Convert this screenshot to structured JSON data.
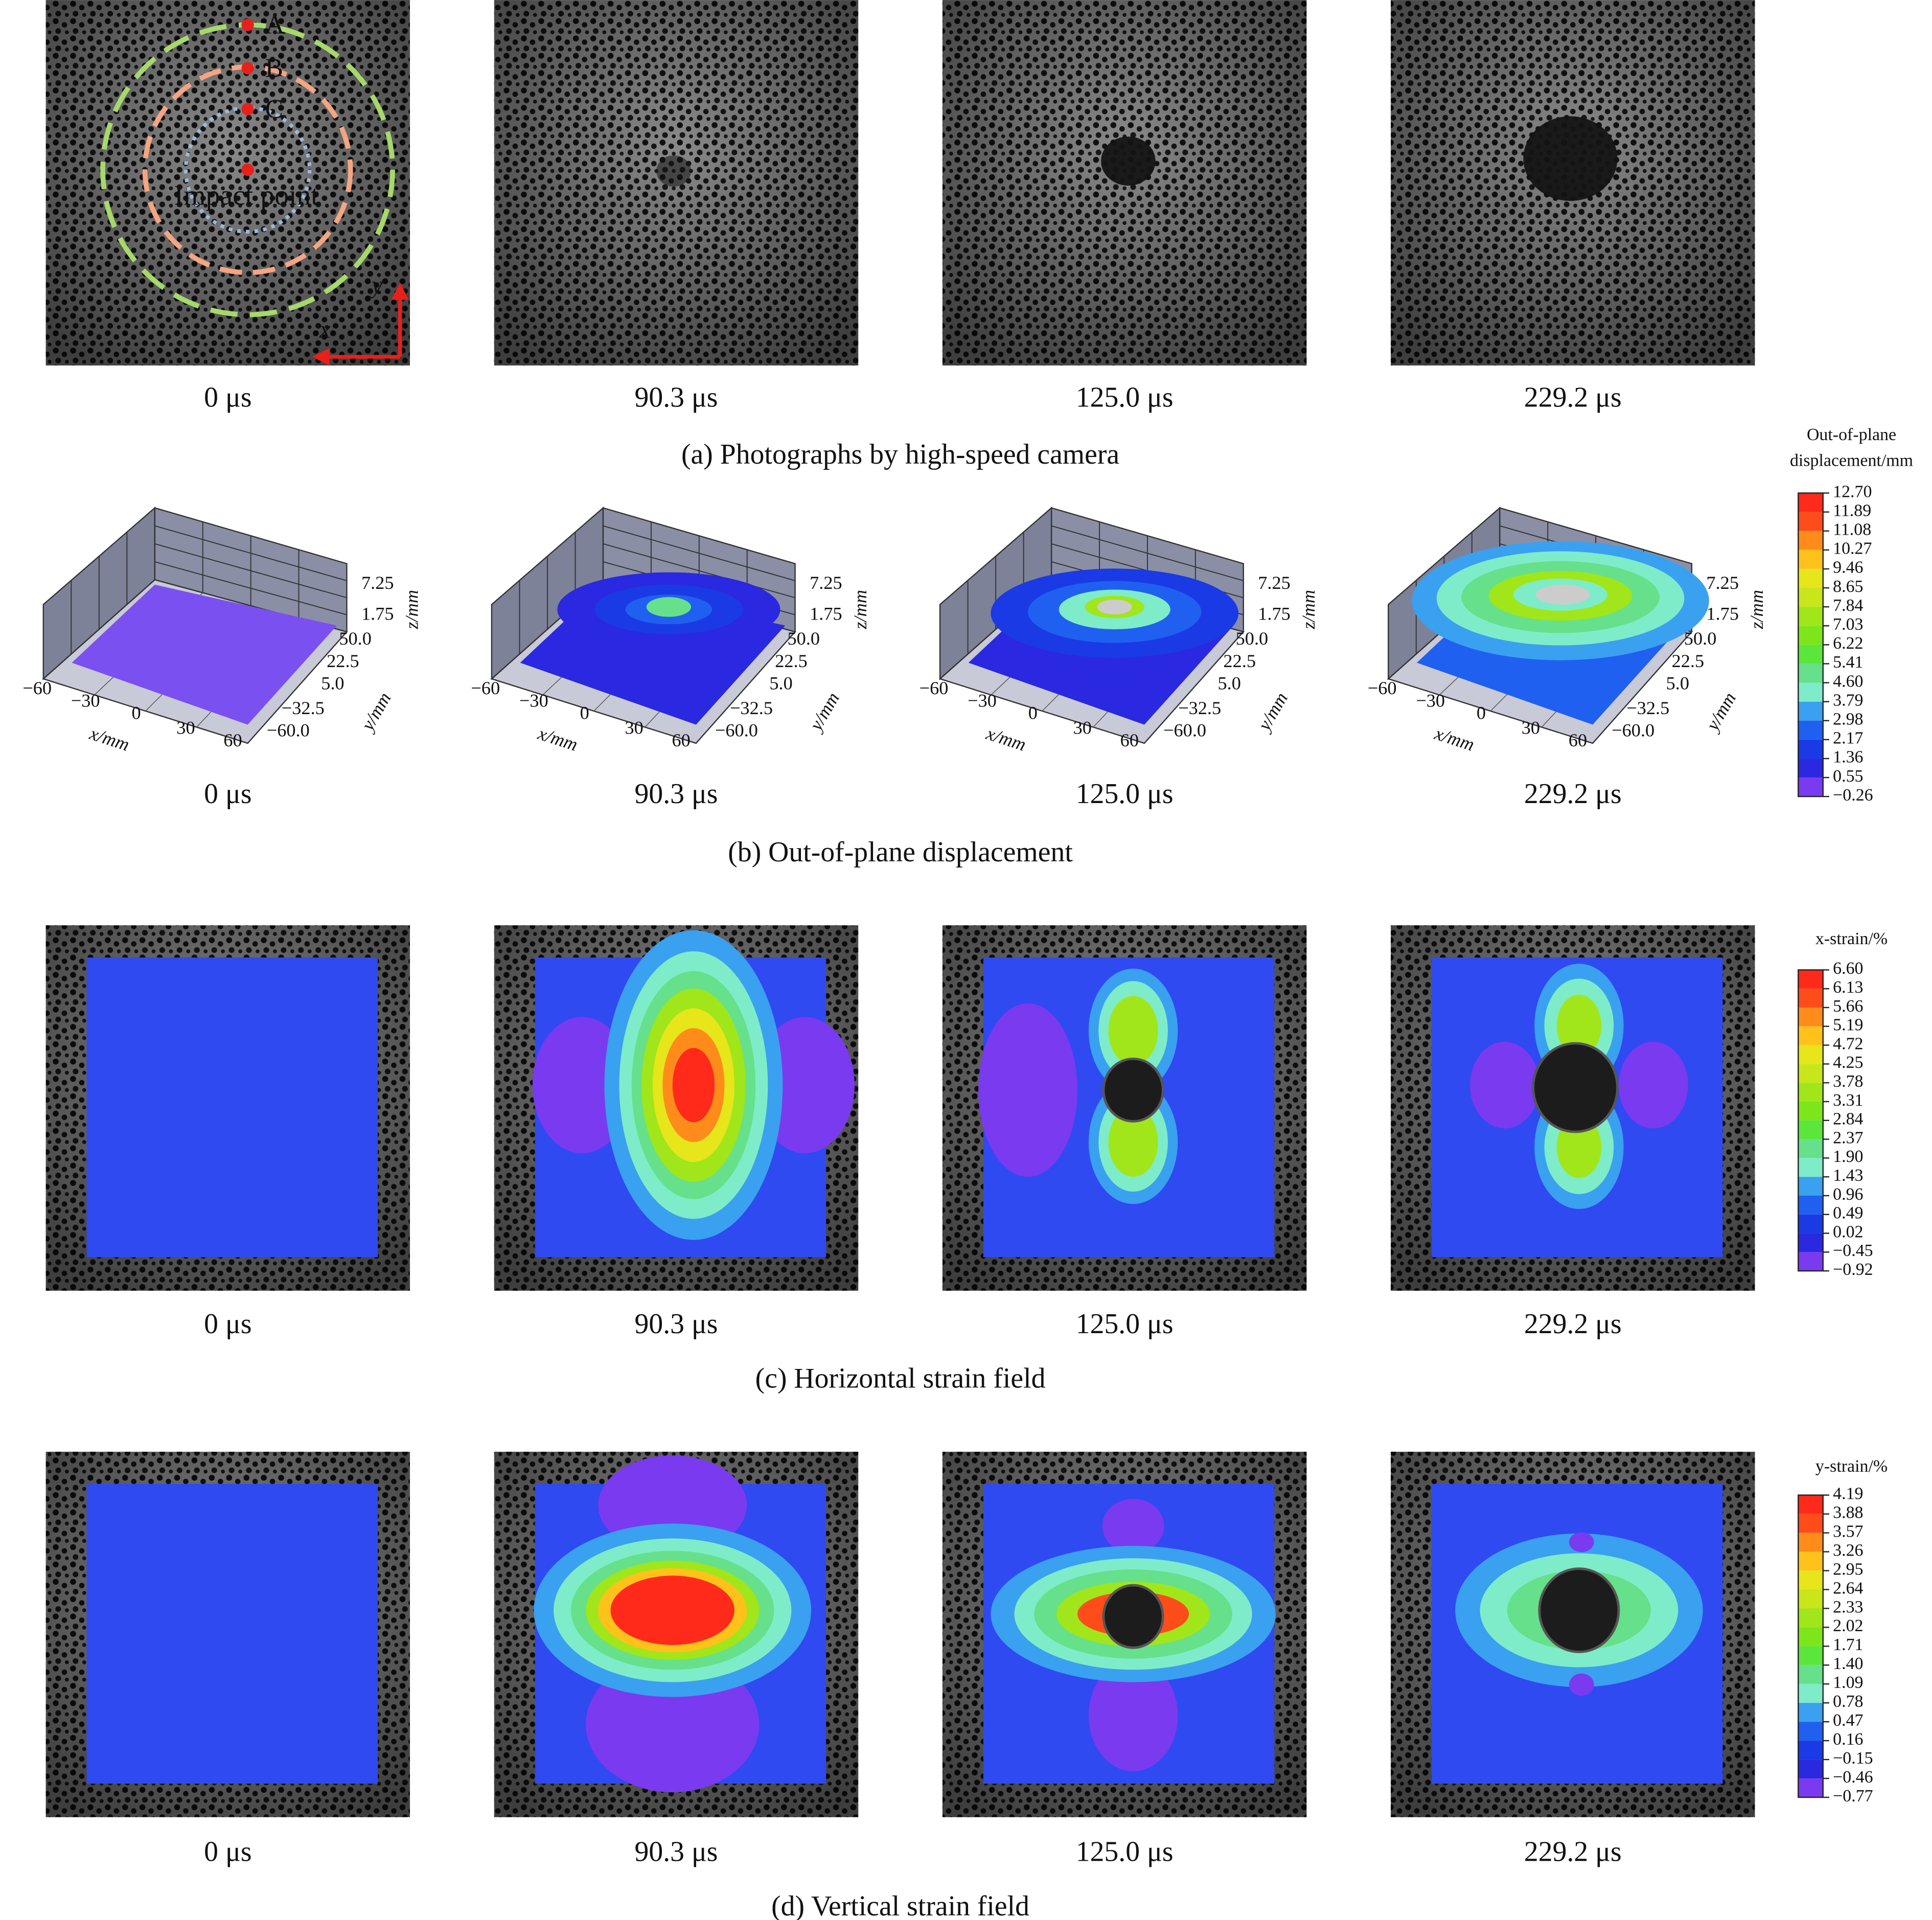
{
  "panels": [
    {
      "caption": "(a) Photographs by high-speed camera",
      "times": [
        "0 μs",
        "90.3 μs",
        "125.0 μs",
        "229.2 μs"
      ],
      "annotations": {
        "points": [
          "A",
          "B",
          "C"
        ],
        "impact": "Impact point",
        "x_axis": "x",
        "y_axis": "y"
      }
    },
    {
      "caption": "(b) Out-of-plane displacement",
      "times": [
        "0 μs",
        "90.3 μs",
        "125.0 μs",
        "229.2 μs"
      ],
      "axes": {
        "x_label": "x/mm",
        "y_label": "y/mm",
        "z_label": "z/mm",
        "x_ticks": [
          "−60",
          "−30",
          "0",
          "30",
          "60"
        ],
        "y_ticks": [
          "50.0",
          "22.5",
          "5.0",
          "−32.5",
          "−60.0"
        ],
        "z_ticks": [
          "7.25",
          "1.75"
        ]
      },
      "colorbar": {
        "title": [
          "Out-of-plane",
          "displacement/mm"
        ],
        "ticks": [
          "12.70",
          "11.89",
          "11.08",
          "10.27",
          "9.46",
          "8.65",
          "7.84",
          "7.03",
          "6.22",
          "5.41",
          "4.60",
          "3.79",
          "2.98",
          "2.17",
          "1.36",
          "0.55",
          "−0.26"
        ]
      }
    },
    {
      "caption": "(c) Horizontal strain field",
      "times": [
        "0 μs",
        "90.3 μs",
        "125.0 μs",
        "229.2 μs"
      ],
      "colorbar": {
        "title": [
          "x-strain/%"
        ],
        "ticks": [
          "6.60",
          "6.13",
          "5.66",
          "5.19",
          "4.72",
          "4.25",
          "3.78",
          "3.31",
          "2.84",
          "2.37",
          "1.90",
          "1.43",
          "0.96",
          "0.49",
          "0.02",
          "−0.45",
          "−0.92"
        ]
      }
    },
    {
      "caption": "(d) Vertical strain field",
      "times": [
        "0 μs",
        "90.3 μs",
        "125.0 μs",
        "229.2 μs"
      ],
      "colorbar": {
        "title": [
          "y-strain/%"
        ],
        "ticks": [
          "4.19",
          "3.88",
          "3.57",
          "3.26",
          "2.95",
          "2.64",
          "2.33",
          "2.02",
          "1.71",
          "1.40",
          "1.09",
          "0.78",
          "0.47",
          "0.16",
          "−0.15",
          "−0.46",
          "−0.77"
        ]
      }
    }
  ]
}
